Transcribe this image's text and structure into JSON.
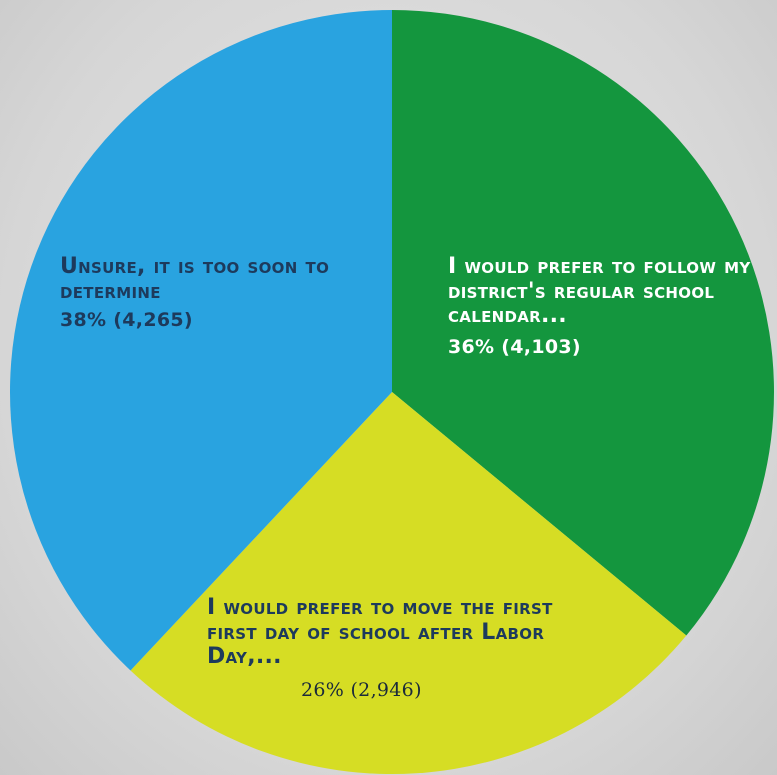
{
  "chart_data": {
    "type": "pie",
    "slices": [
      {
        "label": "Unsure, it is too soon to determine",
        "value_text": "38% (4,265)",
        "percent": 38,
        "count": 4265,
        "color": "#29a3e0"
      },
      {
        "label": "I would prefer to follow my district's regular school calendar...",
        "value_text": "36% (4,103)",
        "percent": 36,
        "count": 4103,
        "color": "#14963e"
      },
      {
        "label": "I would prefer to move the first first day of school after Labor Day,...",
        "value_text": "26%  (2,946)",
        "percent": 26,
        "count": 2946,
        "color": "#d6dd24"
      }
    ]
  }
}
